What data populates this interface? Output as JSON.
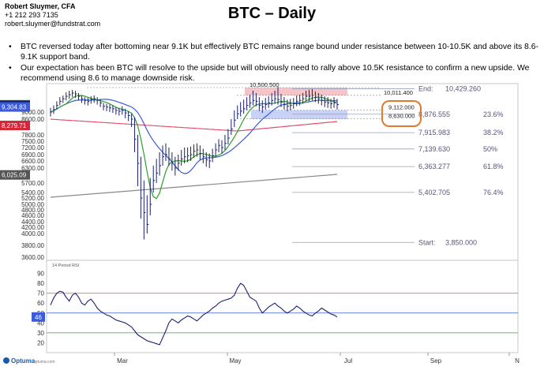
{
  "header": {
    "author_name": "Robert Sluymer, CFA",
    "author_phone": "+1 212 293 7135",
    "author_email": "robert.sluymer@fundstrat.com",
    "title": "BTC – Daily"
  },
  "bullets": [
    "BTC  reversed today after bottoming near 9.1K but effectively BTC remains range bound under resistance between 10-10.5K and above its 8.6-9.1K support band.",
    "Our expectation has been BTC will resolve to the upside but will obviously need to rally above 10.5K resistance to confirm a new upside. We recommend using 8.6 to manage downside risk."
  ],
  "colors": {
    "price_bar": "#1a1f6e",
    "ma_short": "#2ca02c",
    "ma_mid": "#3b5bd9",
    "ma_long": "#e0506a",
    "trend": "#888888",
    "resistance_band": "#f4c4c8",
    "support_band": "#c8d2f6",
    "highlight_ring": "#e07a2e",
    "rsi_line": "#1a1f6e",
    "rsi_70": "#e06a8a",
    "rsi_50": "#3b5bd9",
    "rsi_30": "#3aa04a",
    "level_label": "#555577"
  },
  "chart_data": [
    {
      "type": "ohlc",
      "title": "",
      "ylim": [
        3600,
        11100
      ],
      "y_ticks": [
        3600,
        3800,
        4000,
        4200,
        4400,
        4600,
        4800,
        5000,
        5200,
        5400,
        5700,
        6300,
        6600,
        6900,
        7200,
        7500,
        7800,
        8600,
        9000
      ],
      "y_tick_labels": [
        "3600.00",
        "3800.00",
        "4000.00",
        "4200.00",
        "4400.00",
        "4600.00",
        "4800.00",
        "5000.00",
        "5200.00",
        "5400.00",
        "5700.00",
        "6300.00",
        "6600.00",
        "6900.00",
        "7200.00",
        "7500.00",
        "7800.00",
        "8600.00",
        "9000.00"
      ],
      "x_labels": [
        "Mar",
        "May",
        "Jul",
        "Sep",
        "N"
      ],
      "closes": [
        9000,
        9150,
        9400,
        9650,
        9800,
        9950,
        10050,
        10150,
        10100,
        9950,
        9800,
        9700,
        9650,
        9750,
        9800,
        9700,
        9550,
        9350,
        9300,
        9250,
        9200,
        9100,
        9050,
        9100,
        8950,
        8800,
        8600,
        7600,
        6500,
        5200,
        4700,
        4300,
        5000,
        5800,
        6100,
        6400,
        6800,
        6900,
        6700,
        6500,
        6300,
        6500,
        6700,
        6800,
        6850,
        6900,
        7050,
        7100,
        6950,
        6800,
        6650,
        6600,
        6850,
        7100,
        7300,
        7200,
        7400,
        7650,
        8100,
        8550,
        8900,
        9050,
        9200,
        9400,
        9550,
        9700,
        9650,
        9400,
        9300,
        9450,
        9550,
        9700,
        9800,
        9750,
        9600,
        9450,
        9350,
        9400,
        9500,
        9650,
        9700,
        9800,
        9950,
        9950,
        10000,
        9900,
        9800,
        9700,
        9600,
        9550,
        9500,
        9550,
        9450
      ],
      "highs": [
        9250,
        9400,
        9650,
        9900,
        10000,
        10200,
        10300,
        10350,
        10300,
        10150,
        10000,
        9900,
        9850,
        9950,
        10000,
        9900,
        9750,
        9550,
        9500,
        9450,
        9400,
        9300,
        9250,
        9350,
        9200,
        9050,
        8900,
        8700,
        7800,
        6800,
        5800,
        5300,
        5900,
        6400,
        6700,
        7000,
        7300,
        7400,
        7200,
        7000,
        6800,
        6900,
        7100,
        7200,
        7200,
        7250,
        7350,
        7400,
        7300,
        7150,
        7000,
        6950,
        7150,
        7400,
        7600,
        7550,
        7800,
        8100,
        8600,
        9100,
        9400,
        9600,
        9750,
        9900,
        10050,
        10300,
        10150,
        9900,
        9700,
        9850,
        9950,
        10150,
        10300,
        10600,
        10100,
        9900,
        9750,
        9800,
        9850,
        10000,
        10050,
        10150,
        10300,
        10350,
        10400,
        10250,
        10150,
        10050,
        9950,
        9900,
        9800,
        9900,
        9800
      ],
      "lows": [
        8750,
        8900,
        9150,
        9400,
        9550,
        9700,
        9800,
        9900,
        9850,
        9700,
        9550,
        9450,
        9400,
        9500,
        9550,
        9450,
        9300,
        9100,
        9050,
        9000,
        8950,
        8850,
        8800,
        8850,
        8650,
        8500,
        8200,
        7000,
        5600,
        4500,
        3900,
        4000,
        4600,
        5400,
        5700,
        6000,
        6400,
        6600,
        6400,
        6200,
        6000,
        6200,
        6400,
        6500,
        6550,
        6600,
        6750,
        6800,
        6650,
        6500,
        6350,
        6300,
        6550,
        6800,
        7000,
        6950,
        7100,
        7350,
        7800,
        8200,
        8600,
        8750,
        8900,
        9100,
        9250,
        9400,
        9350,
        9050,
        8950,
        9150,
        9250,
        9400,
        9500,
        9450,
        9300,
        9150,
        9050,
        9100,
        9200,
        9350,
        9400,
        9500,
        9650,
        9650,
        9700,
        9600,
        9500,
        9400,
        9300,
        9250,
        9200,
        9250,
        9150
      ],
      "level_lines": [
        {
          "label": "End:",
          "value": "10,429.260",
          "y": 10429.26
        },
        {
          "label": "",
          "value": "23.6%",
          "y": 8876.555,
          "price": "8,876.555"
        },
        {
          "label": "",
          "value": "38.2%",
          "y": 7915.983,
          "price": "7,915.983"
        },
        {
          "label": "",
          "value": "50%",
          "y": 7139.63,
          "price": "7,139.630"
        },
        {
          "label": "",
          "value": "61.8%",
          "y": 6363.277,
          "price": "6,363.277"
        },
        {
          "label": "",
          "value": "76.4%",
          "y": 5402.705,
          "price": "5,402.705"
        },
        {
          "label": "Start:",
          "value": "3,850.000",
          "y": 3850
        }
      ],
      "annotations": [
        {
          "text": "10,500.500",
          "y": 10500.5
        },
        {
          "text": "10,011.400",
          "y": 10011.4
        },
        {
          "text": "9,112.000",
          "y": 9112
        },
        {
          "text": "8,630.000",
          "y": 8630
        }
      ],
      "price_tags": [
        {
          "text": "9,437.94",
          "y": 9437.94,
          "color": "#2ca02c"
        },
        {
          "text": "9,410.70",
          "y": 9410.7,
          "color": "#1a1f6e"
        },
        {
          "text": "9,304.83",
          "y": 9304.83,
          "color": "#3b5bd9"
        },
        {
          "text": "8,279.71",
          "y": 8279.71,
          "color": "#d62738"
        },
        {
          "text": "6,025.09",
          "y": 6025.09,
          "color": "#555555"
        }
      ],
      "resistance_band": [
        10000,
        10500
      ],
      "support_band": [
        8600,
        9100
      ]
    },
    {
      "type": "line",
      "title": "14 Period RSI",
      "ylim": [
        10,
        100
      ],
      "y_ticks": [
        20,
        30,
        40,
        50,
        60,
        70,
        80,
        90
      ],
      "ref_lines": [
        70,
        50,
        30
      ],
      "current_value": "46",
      "values": [
        58,
        65,
        70,
        72,
        71,
        66,
        62,
        68,
        70,
        66,
        60,
        58,
        62,
        64,
        60,
        55,
        52,
        50,
        48,
        47,
        45,
        43,
        42,
        41,
        40,
        38,
        36,
        32,
        28,
        26,
        24,
        22,
        21,
        20,
        19,
        18,
        25,
        32,
        40,
        44,
        42,
        40,
        43,
        45,
        47,
        46,
        44,
        42,
        45,
        48,
        50,
        52,
        55,
        57,
        60,
        62,
        63,
        64,
        65,
        68,
        75,
        80,
        78,
        72,
        66,
        64,
        62,
        55,
        50,
        53,
        56,
        58,
        60,
        57,
        55,
        52,
        50,
        52,
        54,
        57,
        55,
        52,
        50,
        48,
        47,
        50,
        52,
        55,
        53,
        51,
        49,
        48,
        46
      ]
    }
  ],
  "footer": {
    "logo_text": "Optuma",
    "logo_sub": "optuma.com"
  }
}
